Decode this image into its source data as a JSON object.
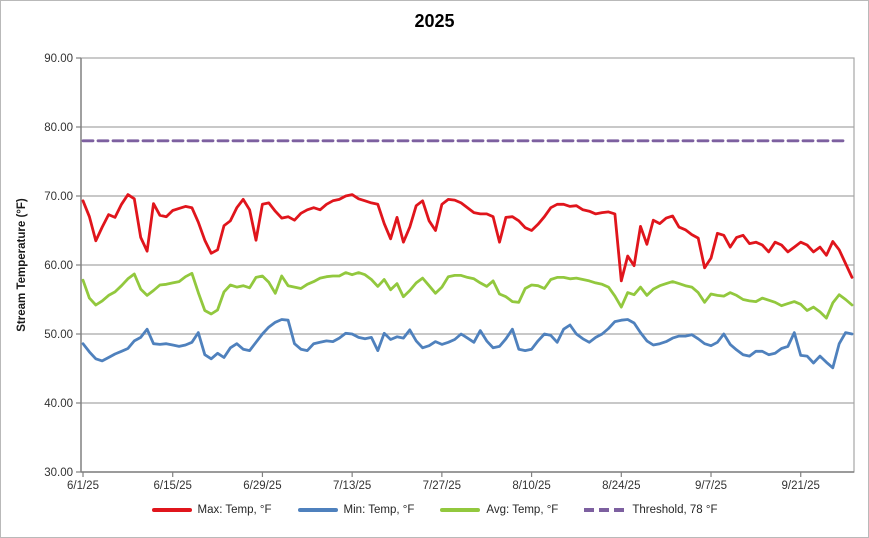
{
  "title": "2025",
  "y_axis": {
    "title": "Stream Temperature (°F)",
    "min": 30,
    "max": 90,
    "step": 10,
    "tick_labels": [
      "90.00",
      "80.00",
      "70.00",
      "60.00",
      "50.00",
      "40.00",
      "30.00"
    ]
  },
  "x_axis": {
    "tick_labels": [
      "6/1/25",
      "6/15/25",
      "6/29/25",
      "7/13/25",
      "7/27/25",
      "8/10/25",
      "8/24/25",
      "9/7/25",
      "9/21/25"
    ],
    "tick_days": [
      0,
      14,
      28,
      42,
      56,
      70,
      84,
      98,
      112
    ]
  },
  "legend": [
    {
      "label": "Max: Temp, °F",
      "color": "#e0151c",
      "style": "solid"
    },
    {
      "label": "Min: Temp, °F",
      "color": "#4f81bd",
      "style": "solid"
    },
    {
      "label": "Avg: Temp, °F",
      "color": "#92c83e",
      "style": "solid"
    },
    {
      "label": "Threshold, 78 °F",
      "color": "#7d60a0",
      "style": "dashed"
    }
  ],
  "colors": {
    "gridline": "#a6a6a6",
    "axis": "#808080",
    "plot_border": "#a6a6a6",
    "text": "#333333"
  },
  "chart_data": {
    "type": "line",
    "title": "2025",
    "xlabel": "",
    "ylabel": "Stream Temperature (°F)",
    "ylim": [
      30,
      90
    ],
    "grid": true,
    "legend_position": "bottom",
    "x_start_date": "6/1/25",
    "x_end_date": "9/29/25",
    "x_interval": "daily",
    "threshold_value": 78,
    "series": [
      {
        "name": "Max: Temp, °F",
        "color": "#e0151c",
        "values": [
          69.3,
          67.0,
          63.5,
          65.5,
          67.3,
          66.9,
          68.8,
          70.2,
          69.6,
          64.0,
          62.0,
          68.9,
          67.2,
          67.0,
          67.9,
          68.2,
          68.5,
          68.3,
          66.2,
          63.6,
          61.7,
          62.2,
          65.7,
          66.4,
          68.3,
          69.5,
          68.0,
          63.6,
          68.8,
          69.0,
          67.8,
          66.8,
          67.0,
          66.5,
          67.5,
          68.0,
          68.3,
          68.0,
          68.8,
          69.3,
          69.5,
          70.0,
          70.2,
          69.6,
          69.3,
          69.0,
          68.8,
          66.0,
          63.8,
          66.9,
          63.3,
          65.5,
          68.6,
          69.3,
          66.4,
          65.0,
          68.8,
          69.5,
          69.4,
          69.0,
          68.3,
          67.6,
          67.4,
          67.4,
          67.0,
          63.3,
          66.9,
          67.0,
          66.4,
          65.4,
          65.0,
          65.9,
          67.0,
          68.3,
          68.8,
          68.8,
          68.5,
          68.6,
          68.0,
          67.8,
          67.4,
          67.6,
          67.7,
          67.4,
          57.7,
          61.3,
          59.9,
          65.6,
          63.0,
          66.5,
          66.0,
          66.8,
          67.1,
          65.5,
          65.1,
          64.4,
          63.9,
          59.6,
          61.0,
          64.6,
          64.3,
          62.6,
          64.0,
          64.3,
          63.1,
          63.3,
          62.9,
          61.9,
          63.3,
          62.9,
          61.9,
          62.6,
          63.3,
          62.9,
          61.9,
          62.6,
          61.4,
          63.4,
          62.2,
          60.2,
          58.2
        ]
      },
      {
        "name": "Min: Temp, °F",
        "color": "#4f81bd",
        "values": [
          48.6,
          47.4,
          46.4,
          46.1,
          46.6,
          47.1,
          47.5,
          47.9,
          49.0,
          49.5,
          50.7,
          48.6,
          48.5,
          48.6,
          48.4,
          48.2,
          48.4,
          48.8,
          50.2,
          47.0,
          46.4,
          47.2,
          46.6,
          48.0,
          48.6,
          47.8,
          47.6,
          48.8,
          50.0,
          51.0,
          51.7,
          52.1,
          52.0,
          48.6,
          47.8,
          47.6,
          48.6,
          48.8,
          49.0,
          48.9,
          49.4,
          50.1,
          50.0,
          49.5,
          49.3,
          49.5,
          47.6,
          50.1,
          49.2,
          49.6,
          49.4,
          50.6,
          49.0,
          48.0,
          48.3,
          48.9,
          48.5,
          48.8,
          49.2,
          50.0,
          49.4,
          48.8,
          50.5,
          49.0,
          48.0,
          48.2,
          49.3,
          50.7,
          47.8,
          47.6,
          47.8,
          49.0,
          50.0,
          49.8,
          48.8,
          50.7,
          51.3,
          50.0,
          49.3,
          48.8,
          49.5,
          50.0,
          50.8,
          51.8,
          52.0,
          52.1,
          51.6,
          50.2,
          49.0,
          48.4,
          48.6,
          48.9,
          49.4,
          49.7,
          49.7,
          49.9,
          49.3,
          48.6,
          48.3,
          48.8,
          50.0,
          48.5,
          47.7,
          47.0,
          46.8,
          47.5,
          47.5,
          47.0,
          47.2,
          47.9,
          48.2,
          50.2,
          46.9,
          46.8,
          45.8,
          46.8,
          45.9,
          45.1,
          48.6,
          50.2,
          50.0
        ]
      },
      {
        "name": "Avg: Temp, °F",
        "color": "#92c83e",
        "values": [
          57.8,
          55.2,
          54.2,
          54.8,
          55.6,
          56.1,
          57.0,
          58.0,
          58.7,
          56.5,
          55.6,
          56.3,
          57.1,
          57.2,
          57.4,
          57.6,
          58.3,
          58.8,
          56.0,
          53.4,
          52.9,
          53.5,
          56.1,
          57.1,
          56.8,
          57.0,
          56.7,
          58.2,
          58.4,
          57.5,
          55.9,
          58.4,
          57.0,
          56.8,
          56.6,
          57.2,
          57.6,
          58.1,
          58.3,
          58.4,
          58.4,
          58.9,
          58.6,
          58.9,
          58.6,
          57.9,
          56.9,
          57.9,
          56.4,
          57.3,
          55.4,
          56.3,
          57.4,
          58.1,
          57.0,
          55.9,
          56.8,
          58.3,
          58.5,
          58.5,
          58.2,
          58.0,
          57.4,
          56.9,
          57.7,
          55.8,
          55.4,
          54.7,
          54.6,
          56.6,
          57.1,
          57.0,
          56.6,
          57.9,
          58.2,
          58.2,
          58.0,
          58.1,
          57.9,
          57.7,
          57.4,
          57.2,
          56.8,
          55.5,
          53.9,
          56.0,
          55.7,
          56.8,
          55.6,
          56.5,
          57.0,
          57.3,
          57.6,
          57.3,
          57.0,
          56.8,
          56.0,
          54.6,
          55.8,
          55.6,
          55.5,
          56.0,
          55.6,
          55.0,
          54.8,
          54.7,
          55.2,
          54.9,
          54.6,
          54.1,
          54.4,
          54.7,
          54.3,
          53.4,
          53.9,
          53.2,
          52.3,
          54.5,
          55.7,
          55.0,
          54.2
        ]
      },
      {
        "name": "Threshold, 78 °F",
        "color": "#7d60a0",
        "style": "dashed",
        "constant": 78
      }
    ]
  }
}
